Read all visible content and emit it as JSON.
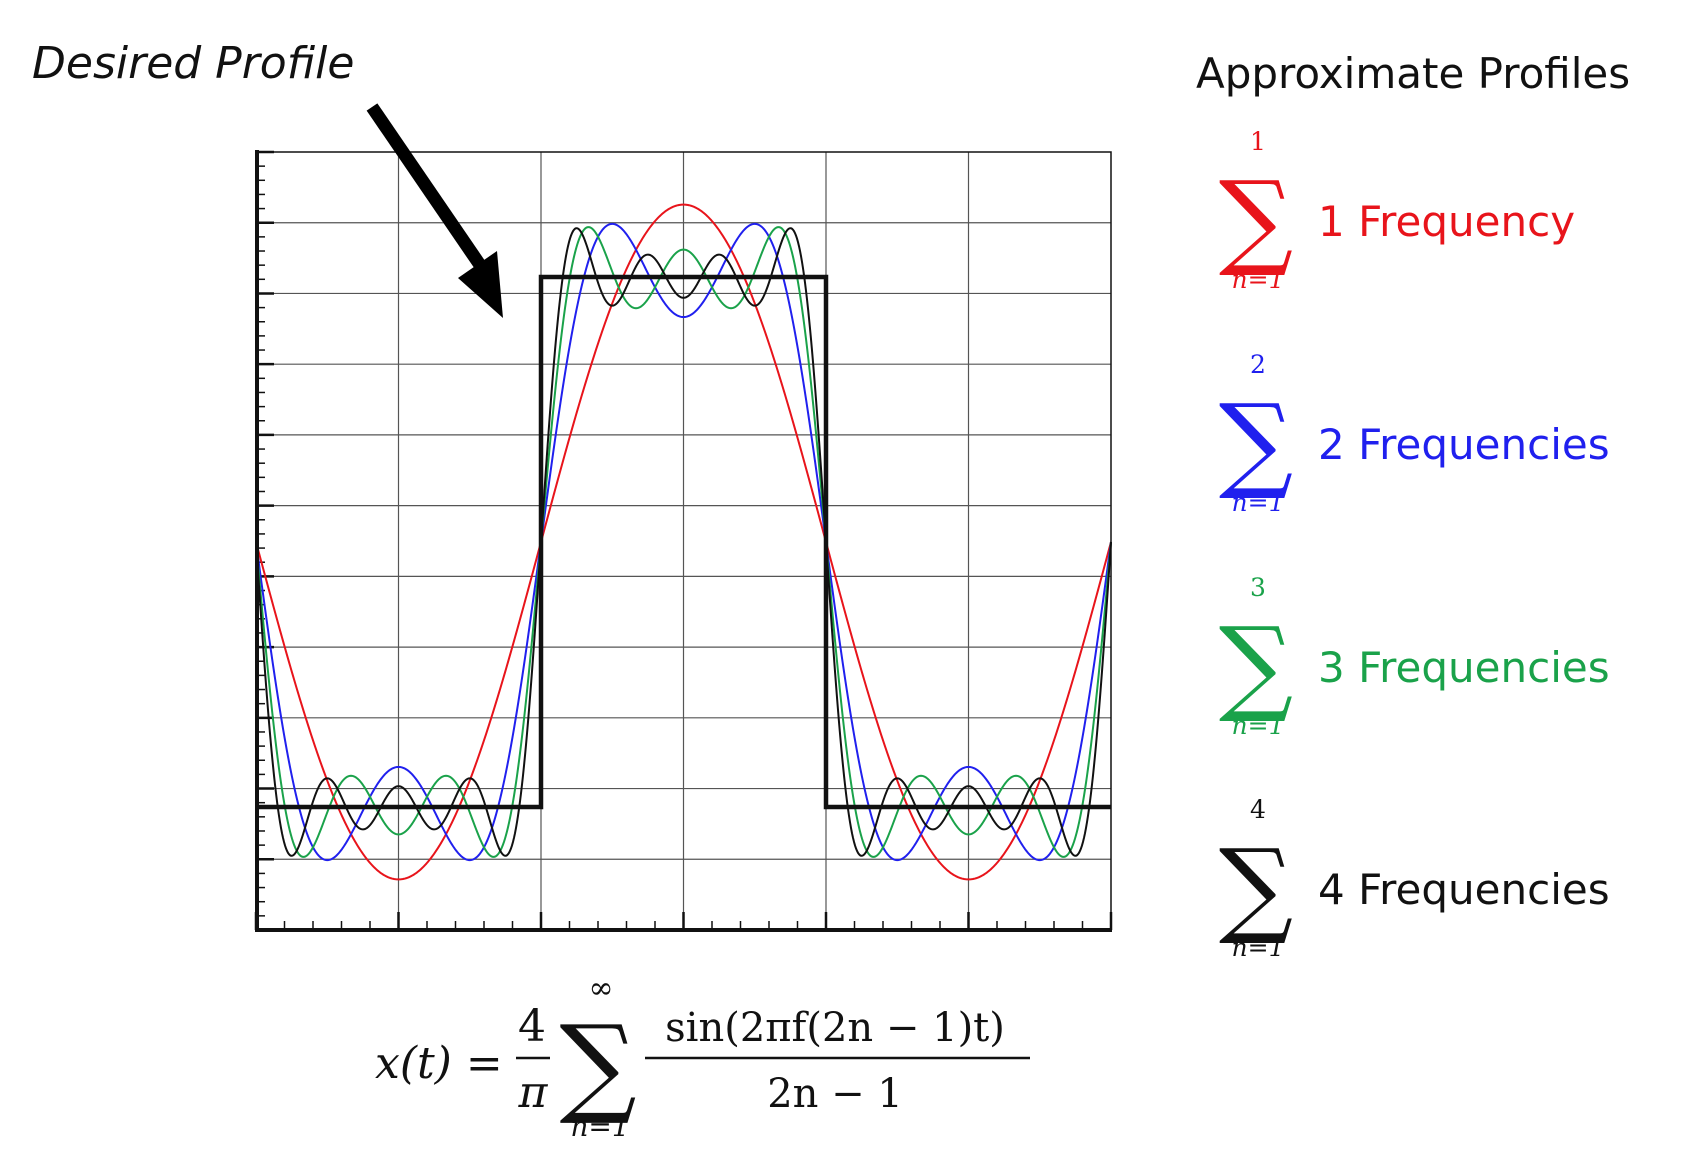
{
  "callout": {
    "label": "Desired Profile"
  },
  "legend": {
    "title": "Approximate Profiles",
    "items": [
      {
        "label": "1 Frequency",
        "upper": "1",
        "lower": "n=1",
        "color": "#e8141b",
        "terms": 1
      },
      {
        "label": "2 Frequencies",
        "upper": "2",
        "lower": "n=1",
        "color": "#2020ee",
        "terms": 2
      },
      {
        "label": "3 Frequencies",
        "upper": "3",
        "lower": "n=1",
        "color": "#1aa24a",
        "terms": 3
      },
      {
        "label": "4 Frequencies",
        "upper": "4",
        "lower": "n=1",
        "color": "#111111",
        "terms": 4
      }
    ]
  },
  "formula": {
    "lhs": "x(t) =",
    "coef_num": "4",
    "coef_den": "π",
    "sum_upper": "∞",
    "sum_lower": "n=1",
    "frac_num": "sin(2πf(2n − 1)t)",
    "frac_den": "2n − 1",
    "infinity_color": "#e8141b"
  },
  "chart_data": {
    "type": "line",
    "x_cycles": 1.5,
    "series": [
      {
        "terms": 1,
        "color": "#e8141b"
      },
      {
        "terms": 2,
        "color": "#2020ee"
      },
      {
        "terms": 3,
        "color": "#1aa24a"
      },
      {
        "terms": 4,
        "color": "#111111"
      },
      {
        "terms": "square",
        "color": "#111111"
      }
    ]
  }
}
